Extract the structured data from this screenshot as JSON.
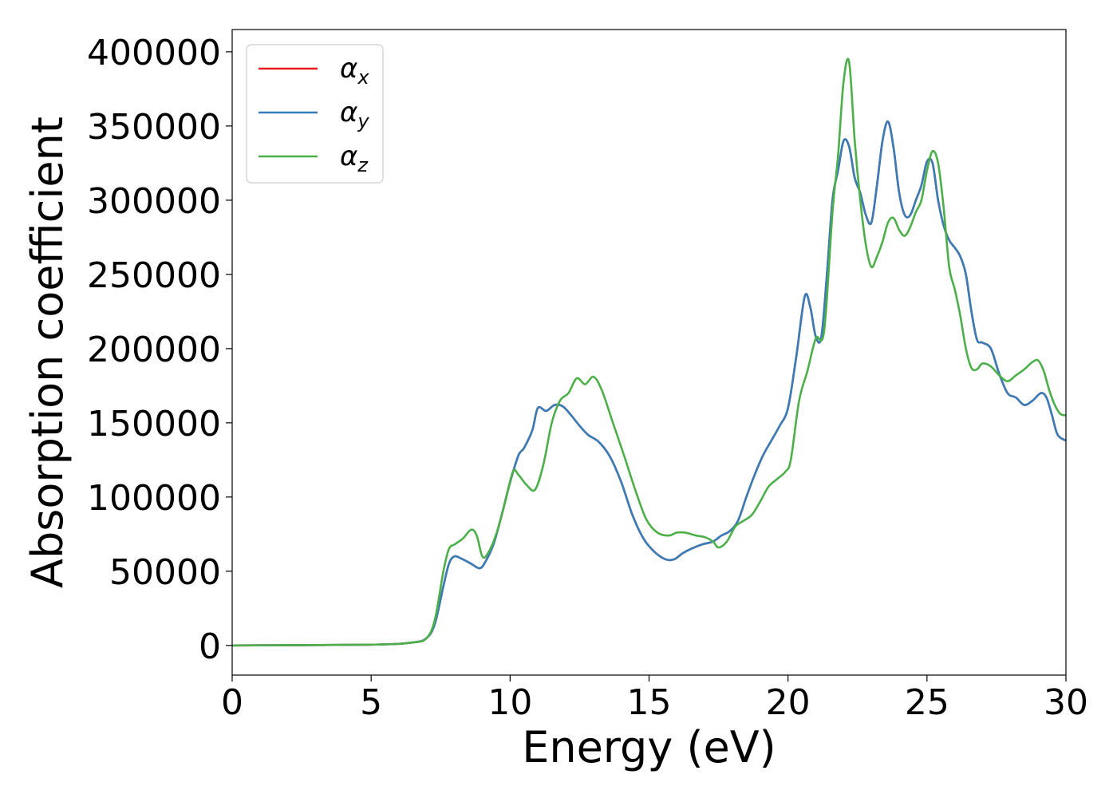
{
  "chart_data": {
    "type": "line",
    "title": "",
    "xlabel": "Energy (eV)",
    "ylabel": "Absorption coefficient",
    "xlim": [
      0,
      30
    ],
    "ylim": [
      -20000,
      415000
    ],
    "xticks": [
      0,
      5,
      10,
      15,
      20,
      25,
      30
    ],
    "yticks": [
      0,
      50000,
      100000,
      150000,
      200000,
      250000,
      300000,
      350000,
      400000
    ],
    "grid": false,
    "legend_position": "top-left",
    "series": [
      {
        "name": "α",
        "subscript": "x",
        "color": "#e41a1c",
        "x": [
          0,
          5,
          6.5,
          7.0,
          7.3,
          7.6,
          7.8,
          8.0,
          8.3,
          8.6,
          8.9,
          9.1,
          9.4,
          9.7,
          10.0,
          10.3,
          10.5,
          10.8,
          11.0,
          11.3,
          11.6,
          11.9,
          12.2,
          12.5,
          12.8,
          13.2,
          13.6,
          14.0,
          14.4,
          14.8,
          15.2,
          15.6,
          15.9,
          16.2,
          16.5,
          16.9,
          17.3,
          17.6,
          17.9,
          18.2,
          18.5,
          18.8,
          19.1,
          19.4,
          19.7,
          20.0,
          20.3,
          20.6,
          20.8,
          21.0,
          21.2,
          21.4,
          21.6,
          21.8,
          22.0,
          22.2,
          22.4,
          22.6,
          22.8,
          23.0,
          23.2,
          23.4,
          23.6,
          23.8,
          24.0,
          24.2,
          24.4,
          24.6,
          24.8,
          25.0,
          25.2,
          25.4,
          25.6,
          25.8,
          26.0,
          26.2,
          26.4,
          26.6,
          26.8,
          27.0,
          27.3,
          27.6,
          27.9,
          28.2,
          28.5,
          28.8,
          29.1,
          29.3,
          29.5,
          29.7,
          30.0
        ],
        "y": [
          0,
          500,
          2000,
          5000,
          15000,
          40000,
          55000,
          60000,
          58000,
          55000,
          52000,
          56000,
          68000,
          88000,
          110000,
          128000,
          133000,
          145000,
          160000,
          158000,
          162000,
          161000,
          155000,
          148000,
          142000,
          137000,
          127000,
          110000,
          88000,
          72000,
          63000,
          58000,
          58000,
          62000,
          65000,
          68000,
          70000,
          74000,
          77000,
          84000,
          100000,
          115000,
          128000,
          138000,
          148000,
          160000,
          195000,
          235000,
          228000,
          208000,
          208000,
          250000,
          300000,
          320000,
          340000,
          336000,
          315000,
          305000,
          290000,
          285000,
          310000,
          340000,
          353000,
          335000,
          305000,
          290000,
          290000,
          300000,
          310000,
          326000,
          325000,
          300000,
          283000,
          273000,
          268000,
          262000,
          250000,
          225000,
          206000,
          204000,
          200000,
          183000,
          170000,
          167000,
          162000,
          165000,
          170000,
          167000,
          155000,
          142000,
          138000
        ]
      },
      {
        "name": "α",
        "subscript": "y",
        "color": "#377eb8",
        "x": [
          0,
          5,
          6.5,
          7.0,
          7.3,
          7.6,
          7.8,
          8.0,
          8.3,
          8.6,
          8.9,
          9.1,
          9.4,
          9.7,
          10.0,
          10.3,
          10.5,
          10.8,
          11.0,
          11.3,
          11.6,
          11.9,
          12.2,
          12.5,
          12.8,
          13.2,
          13.6,
          14.0,
          14.4,
          14.8,
          15.2,
          15.6,
          15.9,
          16.2,
          16.5,
          16.9,
          17.3,
          17.6,
          17.9,
          18.2,
          18.5,
          18.8,
          19.1,
          19.4,
          19.7,
          20.0,
          20.3,
          20.6,
          20.8,
          21.0,
          21.2,
          21.4,
          21.6,
          21.8,
          22.0,
          22.2,
          22.4,
          22.6,
          22.8,
          23.0,
          23.2,
          23.4,
          23.6,
          23.8,
          24.0,
          24.2,
          24.4,
          24.6,
          24.8,
          25.0,
          25.2,
          25.4,
          25.6,
          25.8,
          26.0,
          26.2,
          26.4,
          26.6,
          26.8,
          27.0,
          27.3,
          27.6,
          27.9,
          28.2,
          28.5,
          28.8,
          29.1,
          29.3,
          29.5,
          29.7,
          30.0
        ],
        "y": [
          0,
          500,
          2000,
          5000,
          15000,
          40000,
          55000,
          60000,
          58000,
          55000,
          52000,
          56000,
          68000,
          88000,
          110000,
          128000,
          133000,
          145000,
          160000,
          158000,
          162000,
          161000,
          155000,
          148000,
          142000,
          137000,
          127000,
          110000,
          88000,
          72000,
          63000,
          58000,
          58000,
          62000,
          65000,
          68000,
          70000,
          74000,
          77000,
          84000,
          100000,
          115000,
          128000,
          138000,
          148000,
          160000,
          195000,
          235000,
          228000,
          208000,
          208000,
          250000,
          300000,
          320000,
          340000,
          336000,
          315000,
          305000,
          290000,
          285000,
          310000,
          340000,
          353000,
          335000,
          305000,
          290000,
          290000,
          300000,
          310000,
          326000,
          325000,
          300000,
          283000,
          273000,
          268000,
          262000,
          250000,
          225000,
          206000,
          204000,
          200000,
          183000,
          170000,
          167000,
          162000,
          165000,
          170000,
          167000,
          155000,
          142000,
          138000
        ]
      },
      {
        "name": "α",
        "subscript": "z",
        "color": "#4daf4a",
        "x": [
          0,
          5,
          6.5,
          7.0,
          7.3,
          7.6,
          7.8,
          8.0,
          8.3,
          8.6,
          8.8,
          9.0,
          9.2,
          9.5,
          9.8,
          10.1,
          10.3,
          10.6,
          10.9,
          11.2,
          11.5,
          11.8,
          12.1,
          12.4,
          12.7,
          13.0,
          13.3,
          13.7,
          14.1,
          14.5,
          14.9,
          15.3,
          15.7,
          16.0,
          16.3,
          16.7,
          17.0,
          17.3,
          17.5,
          17.8,
          18.1,
          18.4,
          18.7,
          19.0,
          19.3,
          19.6,
          19.9,
          20.1,
          20.4,
          20.7,
          21.0,
          21.3,
          21.6,
          21.8,
          22.0,
          22.2,
          22.4,
          22.6,
          22.8,
          23.0,
          23.2,
          23.4,
          23.6,
          23.8,
          24.0,
          24.2,
          24.4,
          24.6,
          24.8,
          25.0,
          25.2,
          25.4,
          25.6,
          25.8,
          26.0,
          26.2,
          26.4,
          26.6,
          26.8,
          27.0,
          27.3,
          27.6,
          27.9,
          28.2,
          28.5,
          28.8,
          29.0,
          29.2,
          29.4,
          29.6,
          29.8,
          30.0
        ],
        "y": [
          0,
          500,
          2000,
          5000,
          18000,
          50000,
          65000,
          68000,
          72000,
          78000,
          74000,
          60000,
          62000,
          75000,
          95000,
          117000,
          115000,
          108000,
          105000,
          122000,
          150000,
          165000,
          170000,
          180000,
          176000,
          181000,
          172000,
          150000,
          128000,
          105000,
          85000,
          76000,
          74000,
          76000,
          76000,
          74000,
          73000,
          70000,
          66000,
          70000,
          80000,
          84000,
          88000,
          97000,
          107000,
          112000,
          117000,
          125000,
          165000,
          185000,
          207000,
          212000,
          292000,
          330000,
          380000,
          393000,
          340000,
          300000,
          270000,
          255000,
          262000,
          272000,
          285000,
          288000,
          280000,
          276000,
          282000,
          292000,
          300000,
          320000,
          333000,
          325000,
          295000,
          255000,
          240000,
          222000,
          200000,
          187000,
          186000,
          190000,
          188000,
          182000,
          178000,
          182000,
          186000,
          191000,
          192000,
          185000,
          172000,
          162000,
          156000,
          155000
        ]
      }
    ]
  }
}
